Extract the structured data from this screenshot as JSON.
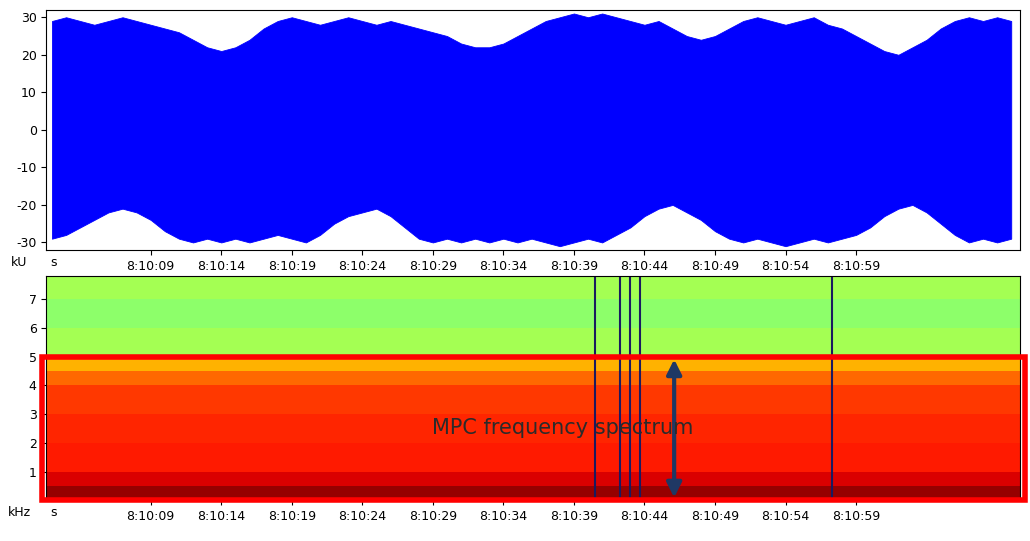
{
  "chart_data": [
    {
      "type": "area",
      "x_label": "s",
      "y_label": "kU",
      "x": [
        2,
        3,
        4,
        5,
        6,
        7,
        8,
        9,
        10,
        11,
        12,
        13,
        14,
        15,
        16,
        17,
        18,
        19,
        20,
        21,
        22,
        23,
        24,
        25,
        26,
        27,
        28,
        29,
        30,
        31,
        32,
        33,
        34,
        35,
        36,
        37,
        38,
        39,
        40,
        41,
        42,
        43,
        44,
        45,
        46,
        47,
        48,
        49,
        50,
        51,
        52,
        53,
        54,
        55,
        56,
        57,
        58,
        59,
        60,
        61,
        62,
        63,
        64,
        65,
        66,
        67,
        68,
        69,
        70
      ],
      "upper": [
        29,
        30,
        29,
        28,
        29,
        30,
        29,
        28,
        27,
        26,
        24,
        22,
        21,
        22,
        24,
        27,
        29,
        30,
        29,
        28,
        29,
        30,
        29,
        28,
        29,
        28,
        27,
        26,
        25,
        23,
        22,
        22,
        23,
        25,
        27,
        29,
        30,
        31,
        30,
        31,
        30,
        29,
        28,
        29,
        27,
        25,
        24,
        25,
        27,
        29,
        30,
        29,
        28,
        29,
        30,
        28,
        27,
        25,
        23,
        21,
        20,
        22,
        24,
        27,
        29,
        30,
        29,
        30,
        29
      ],
      "lower": [
        -29,
        -28,
        -26,
        -24,
        -22,
        -21,
        -22,
        -24,
        -27,
        -29,
        -30,
        -29,
        -30,
        -29,
        -30,
        -29,
        -28,
        -29,
        -30,
        -28,
        -25,
        -23,
        -22,
        -21,
        -23,
        -26,
        -29,
        -30,
        -29,
        -30,
        -29,
        -30,
        -29,
        -30,
        -29,
        -30,
        -31,
        -30,
        -29,
        -30,
        -28,
        -26,
        -23,
        -21,
        -20,
        -22,
        -24,
        -27,
        -29,
        -30,
        -29,
        -30,
        -31,
        -30,
        -29,
        -30,
        -29,
        -28,
        -26,
        -23,
        -21,
        -20,
        -22,
        -25,
        -28,
        -30,
        -29,
        -30,
        -29
      ],
      "color": "#0000ff",
      "xlim": [
        1.6,
        70.6
      ],
      "xticks": [
        {
          "value": 9,
          "label": "8:10:09"
        },
        {
          "value": 14,
          "label": "8:10:14"
        },
        {
          "value": 19,
          "label": "8:10:19"
        },
        {
          "value": 24,
          "label": "8:10:24"
        },
        {
          "value": 29,
          "label": "8:10:29"
        },
        {
          "value": 34,
          "label": "8:10:34"
        },
        {
          "value": 39,
          "label": "8:10:39"
        },
        {
          "value": 44,
          "label": "8:10:44"
        },
        {
          "value": 49,
          "label": "8:10:49"
        },
        {
          "value": 54,
          "label": "8:10:54"
        },
        {
          "value": 59,
          "label": "8:10:59"
        }
      ],
      "ylim": [
        -32,
        32
      ],
      "yticks": [
        -30,
        -20,
        -10,
        0,
        10,
        20,
        30
      ]
    },
    {
      "type": "heatmap",
      "x_label": "s",
      "y_label": "kHz",
      "x_edges": [
        1.6,
        70.6
      ],
      "y_edges": [
        0,
        0.5,
        1,
        2,
        3,
        4,
        4.5,
        5,
        6,
        7,
        7.8
      ],
      "cells": [
        [
          98
        ],
        [
          92
        ],
        [
          88
        ],
        [
          87
        ],
        [
          85
        ],
        [
          80
        ],
        [
          72
        ],
        [
          55
        ],
        [
          52
        ],
        [
          55
        ]
      ],
      "clim": [
        0,
        100
      ],
      "color": "jet",
      "transients": [
        40.5,
        42.3,
        43.0,
        43.7,
        57.3
      ],
      "transient_color": "#1a1a60",
      "xlim": [
        1.6,
        70.6
      ],
      "xticks": [
        {
          "value": 9,
          "label": "8:10:09"
        },
        {
          "value": 14,
          "label": "8:10:14"
        },
        {
          "value": 19,
          "label": "8:10:19"
        },
        {
          "value": 24,
          "label": "8:10:24"
        },
        {
          "value": 29,
          "label": "8:10:29"
        },
        {
          "value": 34,
          "label": "8:10:34"
        },
        {
          "value": 39,
          "label": "8:10:39"
        },
        {
          "value": 44,
          "label": "8:10:44"
        },
        {
          "value": 49,
          "label": "8:10:49"
        },
        {
          "value": 54,
          "label": "8:10:54"
        },
        {
          "value": 59,
          "label": "8:10:59"
        }
      ],
      "ylim": [
        0,
        7.8
      ],
      "yticks": [
        1,
        2,
        3,
        4,
        5,
        6,
        7
      ],
      "annotation": {
        "text": "MPC frequency spectrum",
        "band": [
          0,
          5
        ]
      }
    }
  ]
}
